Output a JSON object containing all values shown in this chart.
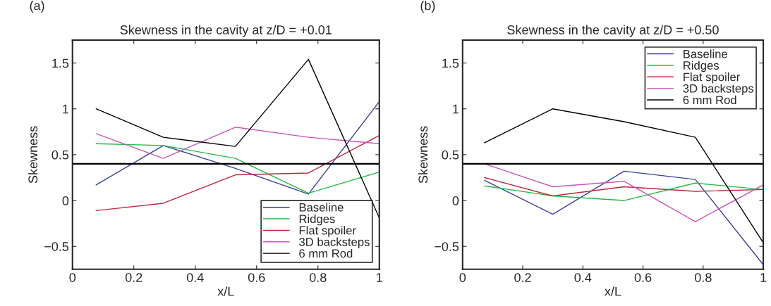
{
  "chart_data": [
    {
      "type": "line",
      "title": "Skewness in the cavity at z/D = +0.01",
      "xlabel": "x/L",
      "ylabel": "Skewness",
      "annotations": [
        "(a)"
      ],
      "xlim": [
        0,
        1
      ],
      "xticks": [
        0,
        0.2,
        0.4,
        0.6,
        0.8,
        1
      ],
      "ylim": [
        -0.75,
        1.75
      ],
      "yticks": [
        {
          "value": -0.5,
          "label": "−0.5"
        },
        0,
        0.5,
        1,
        1.5
      ],
      "grid": false,
      "legend": "bottom right",
      "ref_lines": [
        {
          "axis": "y",
          "value": 0.4,
          "color": "#000000"
        }
      ],
      "series": [
        {
          "name": "Baseline",
          "color": "#3a3f99",
          "x": [
            0.077,
            0.296,
            0.531,
            0.769,
            1.0
          ],
          "values": [
            0.17,
            0.6,
            0.35,
            0.07,
            1.08
          ]
        },
        {
          "name": "Ridges",
          "color": "#22bb44",
          "x": [
            0.077,
            0.296,
            0.531,
            0.769,
            1.0
          ],
          "values": [
            0.62,
            0.6,
            0.46,
            0.08,
            0.31
          ]
        },
        {
          "name": "Flat spoiler",
          "color": "#c0283c",
          "x": [
            0.077,
            0.296,
            0.531,
            0.769,
            1.0
          ],
          "values": [
            -0.11,
            -0.03,
            0.28,
            0.3,
            0.71
          ]
        },
        {
          "name": "3D backsteps",
          "color": "#cc55bb",
          "x": [
            0.077,
            0.296,
            0.531,
            0.769,
            1.0
          ],
          "values": [
            0.73,
            0.46,
            0.8,
            0.69,
            0.62
          ]
        },
        {
          "name": "6 mm Rod",
          "color": "#000000",
          "x": [
            0.077,
            0.296,
            0.531,
            0.769,
            1.0
          ],
          "values": [
            1.0,
            0.69,
            0.59,
            1.54,
            -0.19
          ]
        }
      ]
    },
    {
      "type": "line",
      "title": "Skewness in the cavity at z/D = +0.50",
      "xlabel": "x/L",
      "ylabel": "Skewness",
      "annotations": [
        "(b)"
      ],
      "xlim": [
        0,
        1
      ],
      "xticks": [
        0,
        0.2,
        0.4,
        0.6,
        0.8,
        1
      ],
      "ylim": [
        -0.75,
        1.75
      ],
      "yticks": [
        {
          "value": -0.5,
          "label": "−0.5"
        },
        0,
        0.5,
        1,
        1.5
      ],
      "grid": false,
      "legend": "top right",
      "ref_lines": [
        {
          "axis": "y",
          "value": 0.4,
          "color": "#000000"
        }
      ],
      "series": [
        {
          "name": "Baseline",
          "color": "#3a3f99",
          "x": [
            0.073,
            0.3,
            0.537,
            0.774,
            1.0
          ],
          "values": [
            0.22,
            -0.15,
            0.32,
            0.23,
            -0.7
          ]
        },
        {
          "name": "Ridges",
          "color": "#22bb44",
          "x": [
            0.073,
            0.3,
            0.537,
            0.774,
            1.0
          ],
          "values": [
            0.16,
            0.05,
            0.0,
            0.19,
            0.12
          ]
        },
        {
          "name": "Flat spoiler",
          "color": "#c0283c",
          "x": [
            0.073,
            0.3,
            0.537,
            0.774,
            1.0
          ],
          "values": [
            0.25,
            0.05,
            0.15,
            0.1,
            0.12
          ]
        },
        {
          "name": "3D backsteps",
          "color": "#cc55bb",
          "x": [
            0.073,
            0.3,
            0.537,
            0.774,
            1.0
          ],
          "values": [
            0.4,
            0.15,
            0.21,
            -0.23,
            0.17
          ]
        },
        {
          "name": "6 mm Rod",
          "color": "#000000",
          "x": [
            0.073,
            0.3,
            0.537,
            0.774,
            1.0
          ],
          "values": [
            0.63,
            1.0,
            0.86,
            0.69,
            -0.46
          ]
        }
      ]
    }
  ]
}
